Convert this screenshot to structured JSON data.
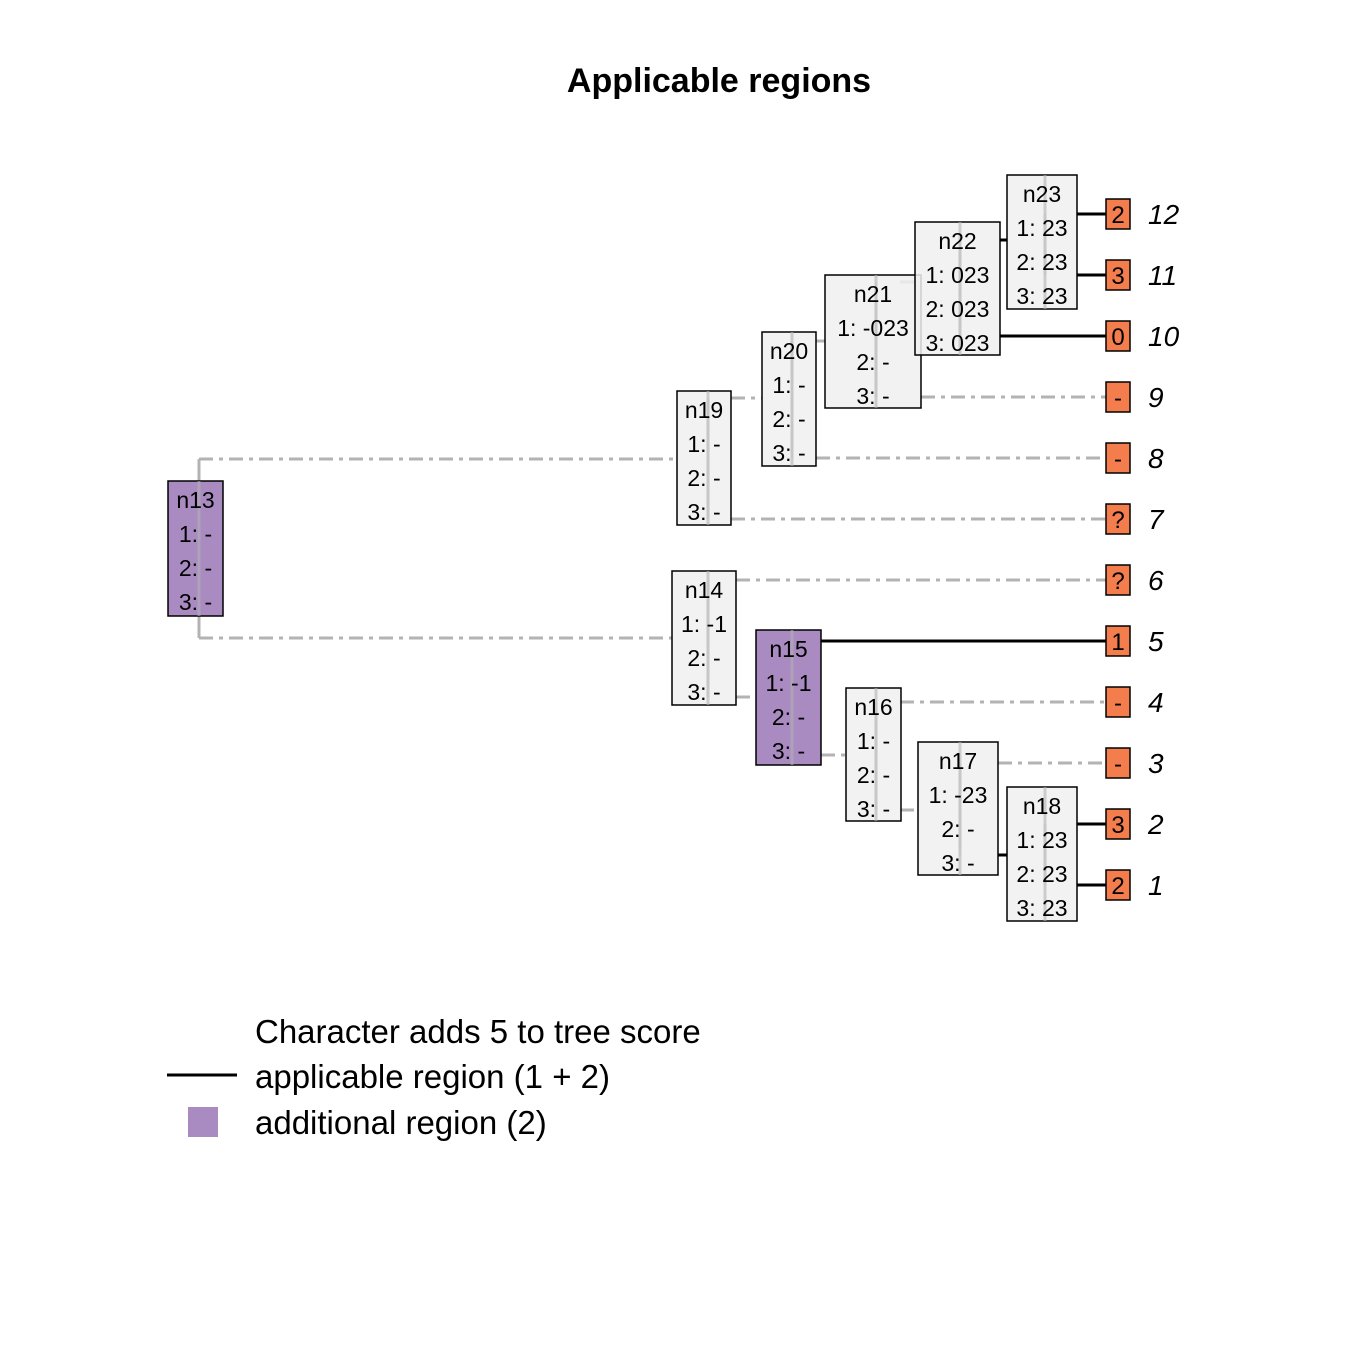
{
  "title": "Applicable regions",
  "colors": {
    "applicable": "#000000",
    "inapplicable": "#b3b3b3",
    "additional": "#a98bc2",
    "node_fill": "#f0f0f0",
    "tip_fill": "#f47d4d"
  },
  "nodes": {
    "n13": {
      "label": "n13",
      "lines": [
        "1: -",
        "2: -",
        "3: -"
      ],
      "additional": true
    },
    "n14": {
      "label": "n14",
      "lines": [
        "1: -1",
        "2: -",
        "3: -"
      ],
      "additional": false
    },
    "n15": {
      "label": "n15",
      "lines": [
        "1: -1",
        "2: -",
        "3: -"
      ],
      "additional": true
    },
    "n16": {
      "label": "n16",
      "lines": [
        "1: -",
        "2: -",
        "3: -"
      ],
      "additional": false
    },
    "n17": {
      "label": "n17",
      "lines": [
        "1: -23",
        "2: -",
        "3: -"
      ],
      "additional": false
    },
    "n18": {
      "label": "n18",
      "lines": [
        "1: 23",
        "2: 23",
        "3: 23"
      ],
      "additional": false
    },
    "n19": {
      "label": "n19",
      "lines": [
        "1: -",
        "2: -",
        "3: -"
      ],
      "additional": false
    },
    "n20": {
      "label": "n20",
      "lines": [
        "1: -",
        "2: -",
        "3: -"
      ],
      "additional": false
    },
    "n21": {
      "label": "n21",
      "lines": [
        "1: -023",
        "2: -",
        "3: -"
      ],
      "additional": false
    },
    "n22": {
      "label": "n22",
      "lines": [
        "1: 023",
        "2: 023",
        "3: 023"
      ],
      "additional": false
    },
    "n23": {
      "label": "n23",
      "lines": [
        "1: 23",
        "2: 23",
        "3: 23"
      ],
      "additional": false
    }
  },
  "tips": [
    {
      "label": "12",
      "state": "2"
    },
    {
      "label": "11",
      "state": "3"
    },
    {
      "label": "10",
      "state": "0"
    },
    {
      "label": "9",
      "state": "-"
    },
    {
      "label": "8",
      "state": "-"
    },
    {
      "label": "7",
      "state": "?"
    },
    {
      "label": "6",
      "state": "?"
    },
    {
      "label": "5",
      "state": "1"
    },
    {
      "label": "4",
      "state": "-"
    },
    {
      "label": "3",
      "state": "-"
    },
    {
      "label": "2",
      "state": "3"
    },
    {
      "label": "1",
      "state": "2"
    }
  ],
  "legend": {
    "heading": "Character adds 5 to tree score",
    "applicable": "applicable region (1 + 2)",
    "additional": "additional region (2)"
  }
}
